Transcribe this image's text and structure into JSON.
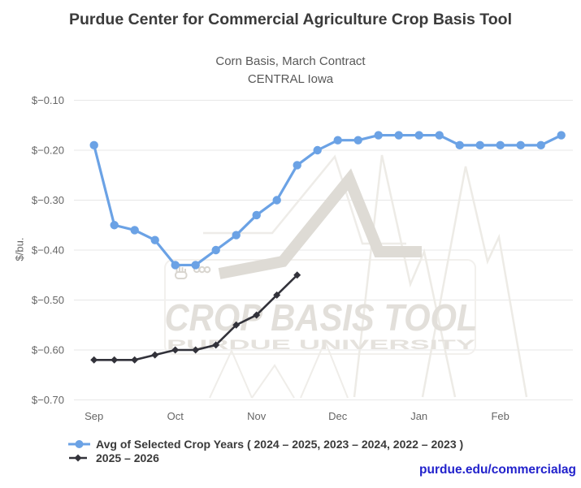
{
  "header": {
    "title": "Purdue Center for Commercial Agriculture Crop Basis Tool"
  },
  "chart_data": {
    "type": "line",
    "title": "Purdue Center for Commercial Agriculture Crop Basis Tool",
    "subtitle": [
      "Corn Basis, March Contract",
      "CENTRAL Iowa"
    ],
    "ylabel": "$/bu.",
    "ylim": [
      -0.7,
      -0.1
    ],
    "y_ticks": [
      -0.1,
      -0.2,
      -0.3,
      -0.4,
      -0.5,
      -0.6,
      -0.7
    ],
    "y_tick_labels": [
      "$−0.10",
      "$−0.20",
      "$−0.30",
      "$−0.40",
      "$−0.50",
      "$−0.60",
      "$−0.70"
    ],
    "x_tick_labels": [
      "Sep",
      "Oct",
      "Nov",
      "Dec",
      "Jan",
      "Feb"
    ],
    "x_unit": "weekly points, 4 per month starting at Sep",
    "grid": true,
    "legend_position": "bottom-left",
    "series": [
      {
        "name": "Avg of Selected Crop Years ( 2024 – 2025, 2023 – 2024, 2022 – 2023 )",
        "color": "#6ba2e5",
        "marker": "circle",
        "values": [
          -0.19,
          -0.35,
          -0.36,
          -0.38,
          -0.43,
          -0.43,
          -0.4,
          -0.37,
          -0.33,
          -0.3,
          -0.23,
          -0.2,
          -0.18,
          -0.18,
          -0.17,
          -0.17,
          -0.17,
          -0.17,
          -0.19,
          -0.19,
          -0.19,
          -0.19,
          -0.19,
          -0.17
        ]
      },
      {
        "name": "2025 – 2026",
        "color": "#32323a",
        "marker": "diamond",
        "values": [
          -0.62,
          -0.62,
          -0.62,
          -0.61,
          -0.6,
          -0.6,
          -0.59,
          -0.55,
          -0.53,
          -0.49,
          -0.45
        ]
      }
    ]
  },
  "watermark": {
    "line1": "CROP BASIS TOOL",
    "line2": "PURDUE UNIVERSITY"
  },
  "footer": {
    "link_text": "purdue.edu/commercialag",
    "link_color": "#2222cc"
  }
}
